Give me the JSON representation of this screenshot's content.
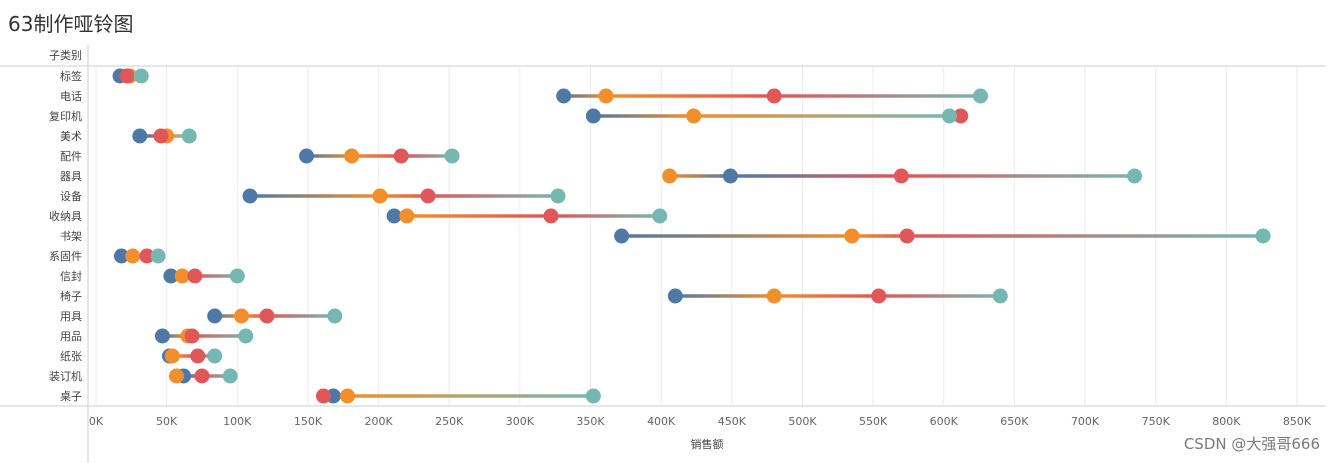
{
  "page": {
    "title": "63制作哑铃图",
    "watermark": "CSDN @大强哥666"
  },
  "colors": {
    "blue": "#4E79A7",
    "orange": "#F28E2B",
    "red": "#E15759",
    "teal": "#76B7B2",
    "grid": "#ececec",
    "axis": "#cfcfcf"
  },
  "chart_data": {
    "type": "dumbbell",
    "title": "63制作哑铃图",
    "ylabel": "子类别",
    "xlabel": "销售额",
    "xlim": [
      0,
      870000
    ],
    "xticks": [
      0,
      50000,
      100000,
      150000,
      200000,
      250000,
      300000,
      350000,
      400000,
      450000,
      500000,
      550000,
      600000,
      650000,
      700000,
      750000,
      800000,
      850000
    ],
    "xtick_labels": [
      "0K",
      "50K",
      "100K",
      "150K",
      "200K",
      "250K",
      "300K",
      "350K",
      "400K",
      "450K",
      "500K",
      "550K",
      "600K",
      "650K",
      "700K",
      "750K",
      "800K",
      "850K"
    ],
    "grid": "vertical",
    "categories": [
      "标签",
      "电话",
      "复印机",
      "美术",
      "配件",
      "器具",
      "设备",
      "收纳具",
      "书架",
      "系固件",
      "信封",
      "椅子",
      "用具",
      "用品",
      "纸张",
      "装订机",
      "桌子"
    ],
    "series": [
      {
        "color": "blue",
        "values": [
          17000,
          331000,
          352000,
          31000,
          149000,
          449000,
          109000,
          211000,
          372000,
          18000,
          53000,
          410000,
          84000,
          47000,
          52000,
          62000,
          168000
        ]
      },
      {
        "color": "orange",
        "values": [
          24000,
          361000,
          423000,
          50000,
          181000,
          406000,
          201000,
          220000,
          535000,
          26000,
          61000,
          480000,
          103000,
          65000,
          54000,
          57000,
          178000
        ]
      },
      {
        "color": "red",
        "values": [
          22000,
          480000,
          612000,
          46000,
          216000,
          570000,
          235000,
          322000,
          574000,
          36000,
          70000,
          554000,
          121000,
          68000,
          72000,
          75000,
          161000
        ]
      },
      {
        "color": "teal",
        "values": [
          32000,
          626000,
          604000,
          66000,
          252000,
          735000,
          327000,
          399000,
          826000,
          44000,
          100000,
          640000,
          169000,
          106000,
          84000,
          95000,
          352000
        ]
      }
    ]
  }
}
